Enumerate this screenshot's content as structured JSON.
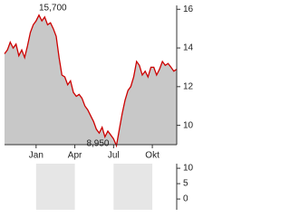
{
  "chart_data": [
    {
      "type": "area",
      "series": [
        {
          "color": "#cc0000",
          "fill": "#c8c8c8",
          "values": [
            13.7,
            13.9,
            14.3,
            14.0,
            14.2,
            13.6,
            13.9,
            13.5,
            14.1,
            14.8,
            15.2,
            15.4,
            15.7,
            15.4,
            15.6,
            15.2,
            15.3,
            15.0,
            14.6,
            13.5,
            12.6,
            12.5,
            12.1,
            12.3,
            11.7,
            11.5,
            11.6,
            11.4,
            11.0,
            10.8,
            10.5,
            10.2,
            9.8,
            9.6,
            9.9,
            9.4,
            9.7,
            9.5,
            9.3,
            8.95,
            9.8,
            10.6,
            11.3,
            11.8,
            12.0,
            12.5,
            13.3,
            13.1,
            12.6,
            12.8,
            12.5,
            13.0,
            13.0,
            12.6,
            12.9,
            13.3,
            13.1,
            13.2,
            13.0,
            12.8,
            12.9
          ]
        }
      ],
      "xlim": [
        0,
        60
      ],
      "xticks": [
        {
          "value": 11,
          "label": "Jan"
        },
        {
          "value": 24.5,
          "label": "Apr"
        },
        {
          "value": 38,
          "label": "Jul"
        },
        {
          "value": 51.5,
          "label": "Okt"
        }
      ],
      "ylim": [
        9,
        16.2
      ],
      "yticks": [
        16,
        14,
        12,
        10
      ],
      "annotations": [
        {
          "x": 12,
          "value": 15.7,
          "label": "15,700"
        },
        {
          "x": 39,
          "value": 8.95,
          "label": "8,950"
        }
      ]
    },
    {
      "type": "bar",
      "ylim": [
        -3.5,
        11.5
      ],
      "yticks": [
        10,
        5,
        0
      ]
    }
  ]
}
